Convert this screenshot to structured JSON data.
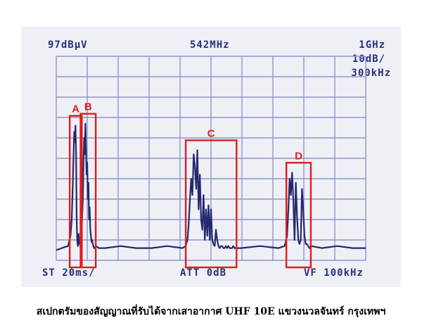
{
  "display": {
    "ref_level": "97dBµV",
    "center_freq": "542MHz",
    "span": "1GHz",
    "scale": "10dB/",
    "rbw": "300kHz",
    "sweep_time": "ST 20ms/",
    "attenuation": "ATT 0dB",
    "video_filter": "VF 100kHz"
  },
  "caption": "สเปกตรัมของสัญญาณที่รับได้จากเสาอากาศ UHF 10E แขวงนวลจันทร์ กรุงเทพฯ",
  "colors": {
    "trace": "#25286e",
    "grid": "#8f95c8",
    "highlight": "#e21b1b",
    "screen": "#eef0f6",
    "text": "#2a2f7a"
  },
  "chart_data": {
    "type": "line",
    "title": "",
    "xlabel": "",
    "ylabel": "",
    "xlim": [
      42,
      1042
    ],
    "ylim": [
      0,
      10
    ],
    "grid": true,
    "x_unit": "MHz",
    "y_unit": "divisions",
    "annotations": [
      {
        "label": "A",
        "x_range": [
          90,
          120
        ]
      },
      {
        "label": "B",
        "x_range": [
          125,
          165
        ]
      },
      {
        "label": "C",
        "x_range": [
          465,
          620
        ]
      },
      {
        "label": "D",
        "x_range": [
          790,
          860
        ]
      }
    ],
    "series": [
      {
        "values_note": "",
        "x": [
          42,
          60,
          80,
          88,
          92,
          95,
          98,
          100,
          102,
          104,
          106,
          108,
          110,
          112,
          114,
          116,
          118,
          120,
          124,
          128,
          130,
          132,
          134,
          136,
          138,
          140,
          142,
          144,
          146,
          148,
          150,
          152,
          154,
          156,
          158,
          160,
          162,
          164,
          166,
          170,
          180,
          200,
          250,
          300,
          350,
          400,
          450,
          460,
          466,
          470,
          474,
          478,
          482,
          486,
          490,
          494,
          498,
          502,
          506,
          510,
          514,
          518,
          522,
          526,
          530,
          534,
          538,
          542,
          546,
          550,
          554,
          558,
          562,
          566,
          570,
          574,
          578,
          582,
          586,
          590,
          594,
          598,
          602,
          606,
          610,
          614,
          618,
          624,
          640,
          700,
          760,
          780,
          788,
          792,
          796,
          800,
          804,
          808,
          812,
          816,
          820,
          824,
          828,
          832,
          836,
          840,
          844,
          848,
          852,
          856,
          860,
          866,
          900,
          950,
          1000,
          1042
        ],
        "y": [
          0.5,
          0.6,
          0.7,
          1.2,
          2.0,
          3.5,
          5.2,
          6.3,
          5.8,
          6.6,
          5.2,
          2.0,
          0.9,
          0.7,
          1.3,
          0.9,
          0.8,
          0.7,
          1.5,
          3.0,
          4.8,
          6.0,
          5.2,
          6.7,
          5.5,
          4.2,
          4.8,
          3.0,
          3.8,
          2.0,
          2.6,
          1.5,
          1.2,
          0.9,
          1.0,
          0.8,
          0.7,
          0.6,
          0.6,
          0.7,
          0.6,
          0.6,
          0.7,
          0.6,
          0.6,
          0.7,
          0.6,
          0.7,
          1.0,
          1.8,
          3.0,
          4.0,
          3.2,
          5.2,
          4.6,
          3.5,
          5.4,
          2.5,
          4.2,
          2.0,
          1.5,
          3.2,
          1.0,
          2.5,
          1.2,
          2.7,
          1.0,
          2.5,
          1.0,
          0.8,
          0.7,
          1.5,
          1.0,
          0.7,
          0.6,
          0.7,
          0.7,
          0.6,
          0.6,
          0.7,
          0.6,
          0.7,
          0.6,
          0.6,
          0.6,
          0.7,
          0.6,
          0.6,
          0.6,
          0.7,
          0.6,
          0.7,
          1.2,
          2.5,
          4.0,
          3.2,
          4.3,
          3.0,
          1.0,
          3.8,
          2.2,
          1.0,
          0.8,
          1.0,
          3.5,
          2.5,
          1.2,
          0.8,
          0.8,
          0.7,
          0.6,
          0.7,
          0.6,
          0.7,
          0.6,
          0.6
        ]
      }
    ]
  }
}
